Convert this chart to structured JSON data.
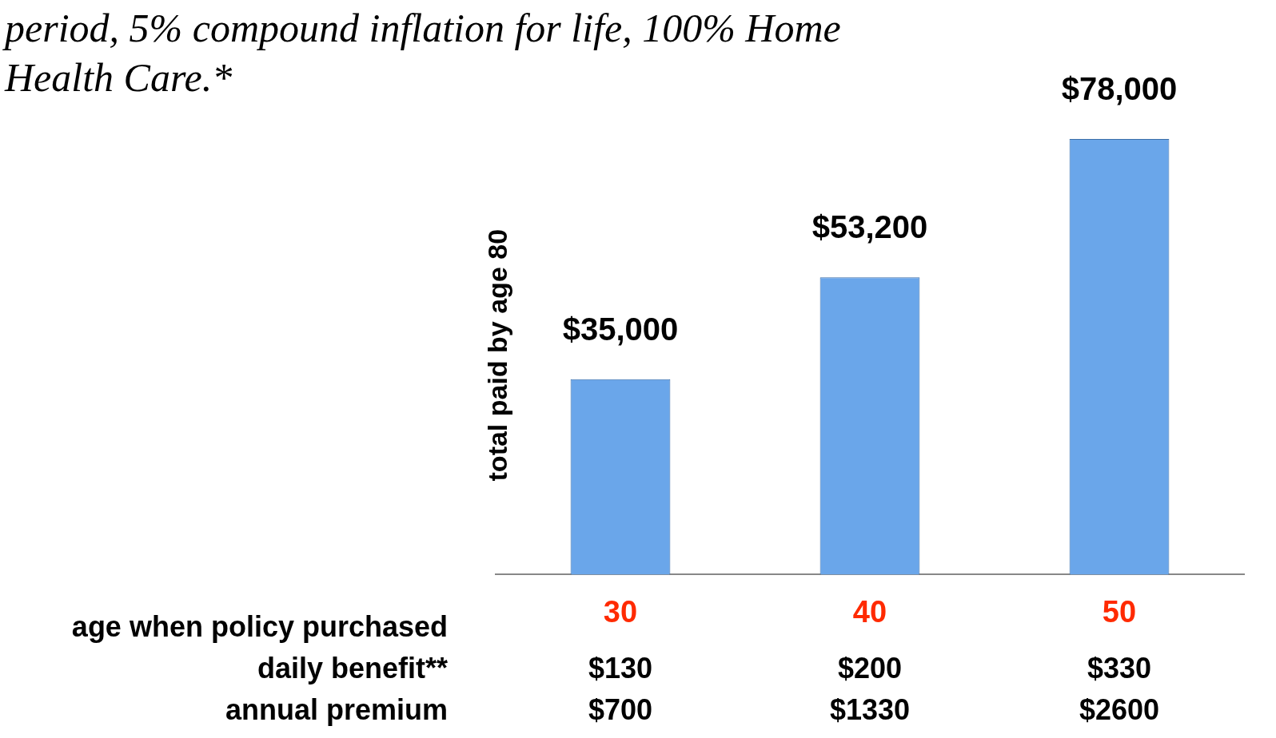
{
  "chart_data": {
    "type": "bar",
    "title": "period, 5% compound inflation for life, 100% Home Health Care.*",
    "ylabel": "total paid by age 80",
    "xlabel": "age when policy purchased",
    "categories": [
      "30",
      "40",
      "50"
    ],
    "values": [
      35000,
      53200,
      78000
    ],
    "value_labels": [
      "$35,000",
      "$53,200",
      "$78,000"
    ],
    "color": "#6aa6ea",
    "annotations": [
      "daily benefit**",
      "$130",
      "$200",
      "$330",
      "annual premium",
      "$700",
      "$1330",
      "$2600"
    ],
    "grid": false,
    "legend": false
  }
}
